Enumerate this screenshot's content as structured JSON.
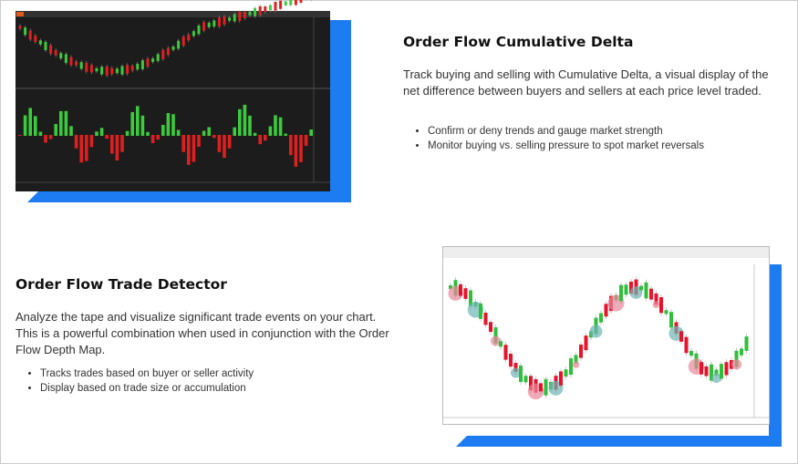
{
  "sections": [
    {
      "title": "Order Flow Cumulative Delta",
      "description": "Track buying and selling with Cumulative Delta, a visual display of the net difference between buyers and sellers at each price level traded.",
      "bullets": [
        "Confirm or deny trends and gauge market strength",
        "Monitor buying vs. selling pressure to spot market reversals"
      ]
    },
    {
      "title": "Order Flow Trade Detector",
      "description": "Analyze the tape and visualize significant trade events on your chart. This is a powerful combination when used in conjunction with the Order Flow Depth Map.",
      "bullets": [
        "Tracks trades based on buyer or seller activity",
        "Display based on trade size or accumulation"
      ]
    }
  ]
}
